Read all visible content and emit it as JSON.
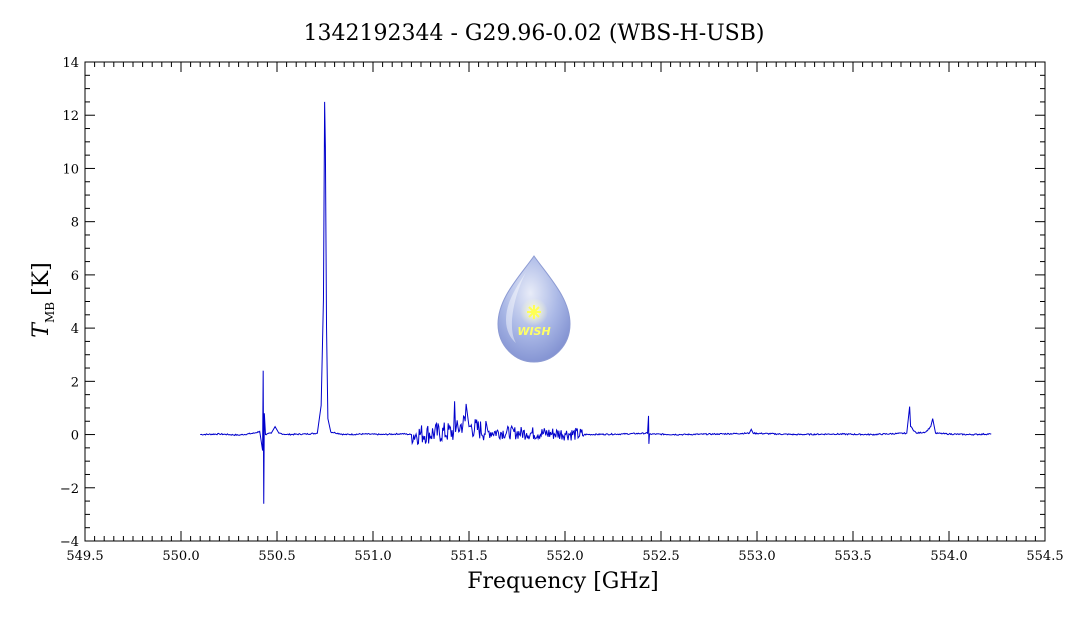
{
  "chart_data": {
    "type": "line",
    "title": "1342192344 - G29.96-0.02 (WBS-H-USB)",
    "xlabel": "Frequency [GHz]",
    "ylabel": {
      "main": "T",
      "sub": "MB",
      "unit": "[K]"
    },
    "xlim": [
      549.5,
      554.5
    ],
    "ylim": [
      -4,
      14
    ],
    "x_ticks": [
      549.5,
      550.0,
      550.5,
      551.0,
      551.5,
      552.0,
      552.5,
      553.0,
      553.5,
      554.0,
      554.5
    ],
    "x_tick_labels": [
      "549.5",
      "550.0",
      "550.5",
      "551.0",
      "551.5",
      "552.0",
      "552.5",
      "553.0",
      "553.5",
      "554.0",
      "554.5"
    ],
    "y_ticks": [
      -4,
      -2,
      0,
      2,
      4,
      6,
      8,
      10,
      12,
      14
    ],
    "y_tick_labels": [
      "−4",
      "−2",
      "0",
      "2",
      "4",
      "6",
      "8",
      "10",
      "12",
      "14"
    ],
    "grid": false,
    "series": [
      {
        "color": "#0000cc",
        "points": [
          [
            550.1,
            0.0
          ],
          [
            550.2,
            0.02
          ],
          [
            550.3,
            -0.02
          ],
          [
            550.38,
            0.05
          ],
          [
            550.41,
            0.12
          ],
          [
            550.425,
            -0.6
          ],
          [
            550.428,
            2.4
          ],
          [
            550.431,
            -2.6
          ],
          [
            550.434,
            0.8
          ],
          [
            550.44,
            0.0
          ],
          [
            550.47,
            0.05
          ],
          [
            550.49,
            0.3
          ],
          [
            550.51,
            0.05
          ],
          [
            550.55,
            0.0
          ],
          [
            550.65,
            0.02
          ],
          [
            550.71,
            0.05
          ],
          [
            550.73,
            1.1
          ],
          [
            550.742,
            5.1
          ],
          [
            550.748,
            12.5
          ],
          [
            550.752,
            10.8
          ],
          [
            550.758,
            4.0
          ],
          [
            550.765,
            0.6
          ],
          [
            550.78,
            0.1
          ],
          [
            550.85,
            0.0
          ],
          [
            550.95,
            0.02
          ],
          [
            551.05,
            0.0
          ],
          [
            551.15,
            0.03
          ],
          [
            551.2,
            0.0
          ],
          [
            551.42,
            0.1
          ],
          [
            551.425,
            1.25
          ],
          [
            551.43,
            0.1
          ],
          [
            551.48,
            0.5
          ],
          [
            551.485,
            1.15
          ],
          [
            551.5,
            0.3
          ],
          [
            551.6,
            0.1
          ],
          [
            551.8,
            0.05
          ],
          [
            552.0,
            0.03
          ],
          [
            552.1,
            0.0
          ],
          [
            552.3,
            0.02
          ],
          [
            552.43,
            0.05
          ],
          [
            552.435,
            0.7
          ],
          [
            552.437,
            -0.35
          ],
          [
            552.44,
            0.02
          ],
          [
            552.6,
            0.0
          ],
          [
            552.8,
            0.02
          ],
          [
            552.96,
            0.05
          ],
          [
            552.97,
            0.2
          ],
          [
            552.98,
            0.05
          ],
          [
            553.2,
            0.0
          ],
          [
            553.4,
            0.02
          ],
          [
            553.6,
            0.0
          ],
          [
            553.78,
            0.05
          ],
          [
            553.795,
            1.05
          ],
          [
            553.8,
            0.3
          ],
          [
            553.83,
            0.05
          ],
          [
            553.88,
            0.1
          ],
          [
            553.905,
            0.3
          ],
          [
            553.915,
            0.6
          ],
          [
            553.93,
            0.05
          ],
          [
            554.0,
            0.02
          ],
          [
            554.1,
            0.0
          ],
          [
            554.22,
            0.02
          ]
        ],
        "noise_band": {
          "x_range": [
            551.2,
            552.1
          ],
          "amplitude_K": 0.5
        }
      }
    ]
  },
  "logo": {
    "text": "WISH"
  }
}
